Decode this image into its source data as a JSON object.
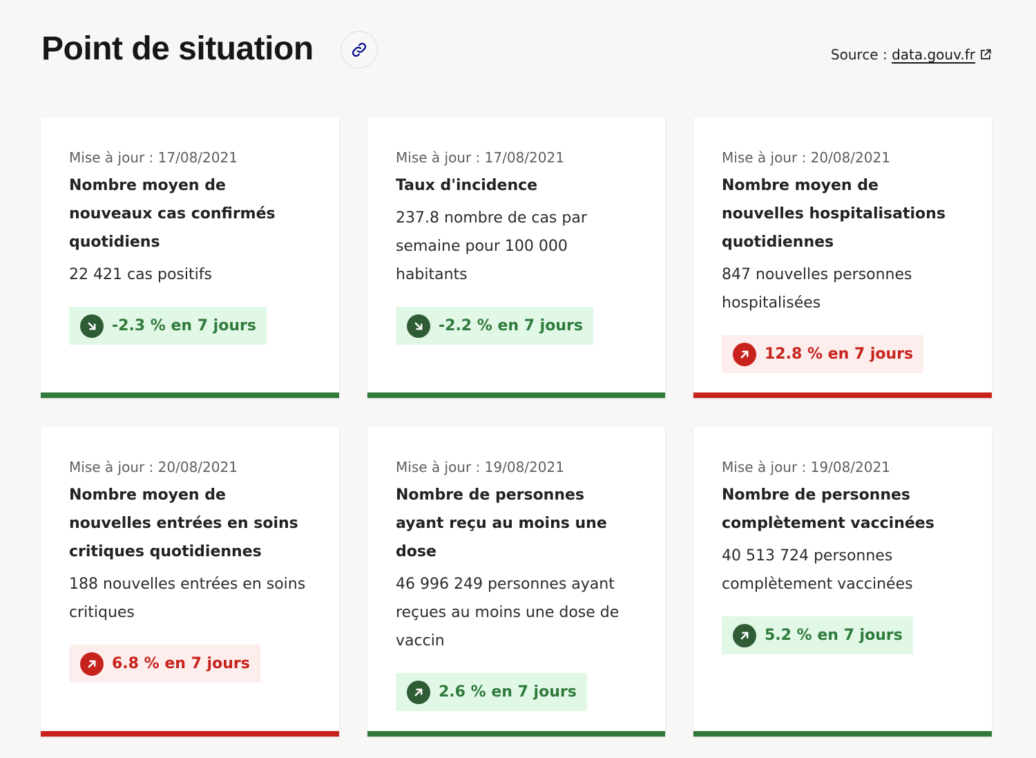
{
  "header": {
    "title": "Point de situation",
    "source_prefix": "Source : ",
    "source_link": "data.gouv.fr"
  },
  "cards": [
    {
      "updated": "Mise à jour : 17/08/2021",
      "title": "Nombre moyen de nouveaux cas confirmés quotidiens",
      "value": "22 421 cas positifs",
      "trend": "-2.3 % en 7 jours",
      "status": "good",
      "direction": "down"
    },
    {
      "updated": "Mise à jour : 17/08/2021",
      "title": "Taux d'incidence",
      "value": "237.8 nombre de cas par semaine pour 100 000 habitants",
      "trend": "-2.2 % en 7 jours",
      "status": "good",
      "direction": "down"
    },
    {
      "updated": "Mise à jour : 20/08/2021",
      "title": "Nombre moyen de nouvelles hospitalisations quotidiennes",
      "value": "847 nouvelles personnes hospitalisées",
      "trend": "12.8 % en 7 jours",
      "status": "bad",
      "direction": "up"
    },
    {
      "updated": "Mise à jour : 20/08/2021",
      "title": "Nombre moyen de nouvelles entrées en soins critiques quotidiennes",
      "value": "188 nouvelles entrées en soins critiques",
      "trend": "6.8 % en 7 jours",
      "status": "bad",
      "direction": "up"
    },
    {
      "updated": "Mise à jour : 19/08/2021",
      "title": "Nombre de personnes ayant reçu au moins une dose",
      "value": "46 996 249 personnes ayant reçues au moins une dose de vaccin",
      "trend": "2.6 % en 7 jours",
      "status": "good",
      "direction": "up"
    },
    {
      "updated": "Mise à jour : 19/08/2021",
      "title": "Nombre de personnes complètement vaccinées",
      "value": "40 513 724 personnes complètement vaccinées",
      "trend": "5.2 % en 7 jours",
      "status": "good",
      "direction": "up"
    }
  ],
  "colors": {
    "good": "#2f7a3b",
    "bad": "#c8221c",
    "good_bg": "#e1f8e7",
    "bad_bg": "#fdeeed",
    "link_icon": "#000091"
  },
  "icons": {
    "title_link": "link-icon",
    "source_link": "external-link-icon",
    "trend_down": "arrow-down-right-icon",
    "trend_up": "arrow-up-right-icon"
  }
}
